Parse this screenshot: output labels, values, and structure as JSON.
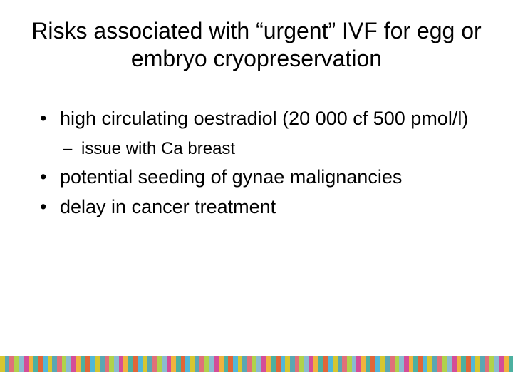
{
  "title": "Risks associated with “urgent” IVF for egg or embryo cryopreservation",
  "bullets": {
    "b1": "high circulating oestradiol (20 000 cf 500 pmol/l)",
    "b1_sub1": "issue with Ca breast",
    "b2": "potential seeding of gynae malignancies",
    "b3": "delay in cancer treatment"
  },
  "styling": {
    "background_color": "#ffffff",
    "text_color": "#000000",
    "title_fontsize": 32,
    "bullet_level1_fontsize": 27,
    "bullet_level2_fontsize": 24,
    "font_family": "Arial",
    "footer_stripe_height": 22,
    "footer_stripe_colors": [
      "#d6c630",
      "#59a7b3",
      "#e07079",
      "#b0d24b",
      "#8abbd0",
      "#d44d98",
      "#efb33e",
      "#4cb0a0",
      "#e06638",
      "#51b7d8",
      "#d6c630",
      "#59a7b3",
      "#e07079",
      "#b0d24b",
      "#8abbd0",
      "#d44d98",
      "#efb33e",
      "#4cb0a0",
      "#e06638",
      "#51b7d8",
      "#d6c630",
      "#59a7b3",
      "#e07079",
      "#b0d24b",
      "#8abbd0",
      "#d44d98",
      "#efb33e",
      "#4cb0a0",
      "#e06638",
      "#51b7d8",
      "#d6c630",
      "#59a7b3",
      "#e07079",
      "#b0d24b",
      "#8abbd0",
      "#d44d98",
      "#efb33e",
      "#4cb0a0",
      "#e06638",
      "#51b7d8",
      "#d6c630",
      "#59a7b3",
      "#e07079",
      "#b0d24b",
      "#8abbd0",
      "#d44d98",
      "#efb33e",
      "#4cb0a0",
      "#e06638",
      "#51b7d8",
      "#d6c630",
      "#59a7b3",
      "#e07079",
      "#b0d24b",
      "#8abbd0",
      "#d44d98",
      "#efb33e",
      "#4cb0a0",
      "#e06638",
      "#51b7d8",
      "#d6c630",
      "#59a7b3",
      "#e07079",
      "#b0d24b",
      "#8abbd0",
      "#d44d98",
      "#efb33e",
      "#4cb0a0",
      "#e06638",
      "#51b7d8",
      "#d6c630",
      "#59a7b3",
      "#e07079",
      "#b0d24b",
      "#8abbd0",
      "#d44d98",
      "#efb33e",
      "#4cb0a0",
      "#e06638",
      "#51b7d8",
      "#d6c630",
      "#59a7b3",
      "#e07079",
      "#b0d24b",
      "#8abbd0",
      "#d44d98",
      "#efb33e",
      "#4cb0a0",
      "#e06638",
      "#51b7d8",
      "#d6c630",
      "#59a7b3",
      "#e07079",
      "#b0d24b",
      "#8abbd0",
      "#d44d98",
      "#efb33e",
      "#4cb0a0",
      "#e06638",
      "#51b7d8",
      "#d6c630",
      "#59a7b3",
      "#e07079",
      "#b0d24b",
      "#8abbd0",
      "#d44d98",
      "#efb33e",
      "#4cb0a0"
    ]
  }
}
